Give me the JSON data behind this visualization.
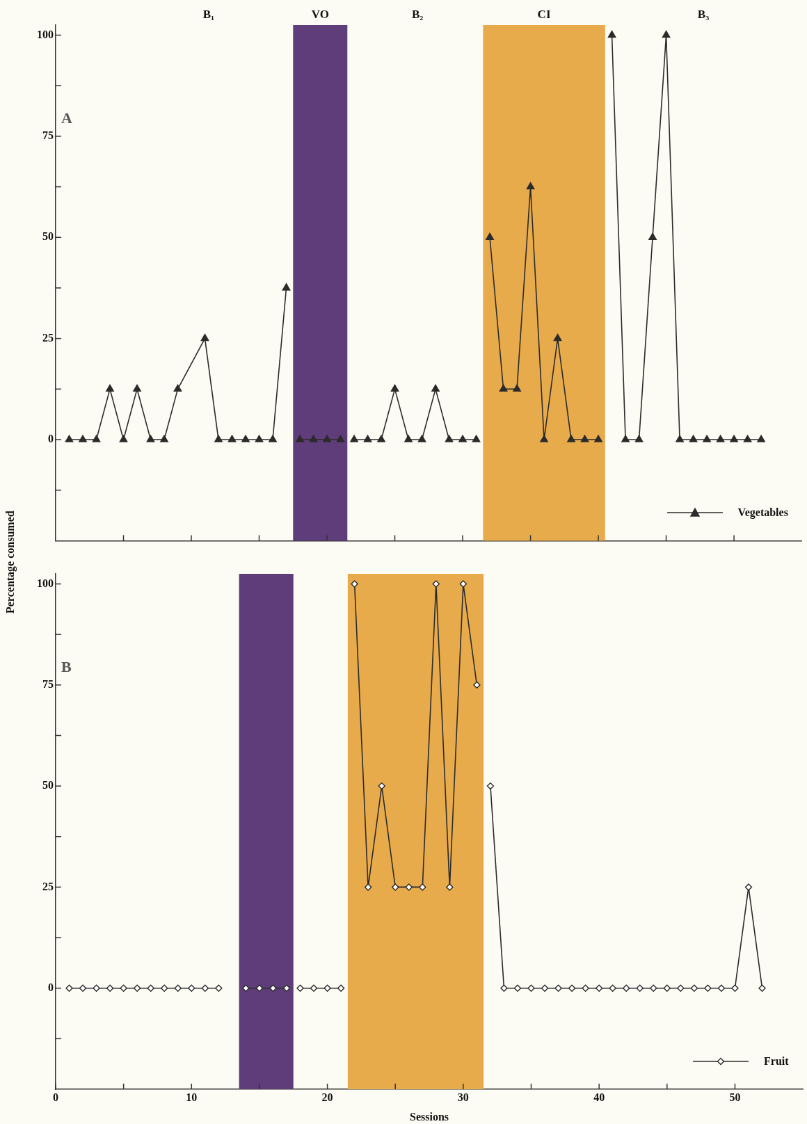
{
  "chart_data": [
    {
      "type": "line",
      "ylabel": "Percentage consumed",
      "annotations": [
        "A",
        "B₁",
        "B₂",
        "B₃"
      ],
      "series": [
        {
          "name": "Vegetables",
          "color": "#2b2b2b",
          "x": [
            1,
            2,
            3,
            4,
            5,
            6,
            7,
            8,
            9,
            11,
            12,
            13,
            14,
            15,
            16,
            17,
            17.5,
            18,
            19,
            20,
            21,
            21.5,
            22,
            23,
            24,
            25,
            26,
            27,
            28,
            29,
            30,
            31,
            31.5,
            32,
            33,
            34,
            35,
            36,
            37,
            38,
            39,
            40,
            40.5,
            41,
            42,
            43,
            44,
            45,
            46,
            47,
            48,
            49,
            50,
            51,
            52
          ],
          "values": [
            0,
            0,
            0,
            12.5,
            0,
            12.5,
            0,
            0,
            12.5,
            25,
            0,
            0,
            0,
            0,
            0,
            37.5,
            null,
            0,
            0,
            0,
            0,
            null,
            0,
            0,
            0,
            12.5,
            0,
            0,
            12.5,
            0,
            0,
            0,
            null,
            50,
            12.5,
            12.5,
            62.5,
            0,
            25,
            0,
            0,
            0,
            null,
            100,
            0,
            0,
            50,
            100,
            0,
            0,
            0,
            0,
            0,
            0,
            0
          ]
        }
      ],
      "xlim": [
        0,
        55
      ],
      "xticks": [
        5,
        10,
        15,
        20,
        25,
        30,
        35,
        40,
        45,
        50
      ],
      "ylim": [
        -25,
        102.5
      ],
      "yticks": [
        {
          "value": -12.5,
          "label": null
        },
        0,
        {
          "value": 12.5,
          "label": null
        },
        25,
        {
          "value": 37.5,
          "label": null
        },
        50,
        {
          "value": 62.5,
          "label": null
        },
        75,
        {
          "value": 87.5,
          "label": null
        },
        100
      ],
      "bands": [
        {
          "axis": "x",
          "from": 17.5,
          "to": 21.5,
          "label": "VO",
          "color": "#5f3d7a"
        },
        {
          "axis": "x",
          "from": 31.5,
          "to": 40.5,
          "label": "CI",
          "color": "#e8ab4c"
        }
      ],
      "tick_labels": "y",
      "grid": false,
      "legend": "bottom right",
      "marker": "triangle",
      "line_style": "solid"
    },
    {
      "type": "line",
      "xlabel": "Sessions",
      "annotations": [
        "B"
      ],
      "series": [
        {
          "name": "Fruit",
          "color": "#2b2b2b",
          "x": [
            1,
            2,
            3,
            4,
            5,
            6,
            7,
            8,
            9,
            10,
            11,
            12,
            13,
            14,
            15,
            16,
            17,
            17.5,
            18,
            19,
            20,
            21,
            21.5,
            22,
            23,
            24,
            25,
            26,
            27,
            28,
            29,
            30,
            31,
            31.5,
            32,
            33,
            34,
            35,
            36,
            37,
            38,
            39,
            40,
            41,
            42,
            43,
            44,
            45,
            46,
            47,
            48,
            49,
            50,
            51,
            52
          ],
          "values": [
            0,
            0,
            0,
            0,
            0,
            0,
            0,
            0,
            0,
            0,
            0,
            0,
            null,
            0,
            0,
            0,
            0,
            null,
            0,
            0,
            0,
            0,
            null,
            100,
            25,
            50,
            25,
            25,
            25,
            100,
            25,
            100,
            75,
            null,
            50,
            0,
            0,
            0,
            0,
            0,
            0,
            0,
            0,
            0,
            0,
            0,
            0,
            0,
            0,
            0,
            0,
            0,
            0,
            25,
            0
          ]
        }
      ],
      "xlim": [
        0,
        55
      ],
      "xticks": [
        0,
        {
          "value": 5,
          "label": null
        },
        10,
        {
          "value": 15,
          "label": null
        },
        20,
        {
          "value": 25,
          "label": null
        },
        30,
        {
          "value": 35,
          "label": null
        },
        40,
        {
          "value": 45,
          "label": null
        },
        50
      ],
      "ylim": [
        -25,
        102.5
      ],
      "yticks": [
        {
          "value": -12.5,
          "label": null
        },
        0,
        {
          "value": 12.5,
          "label": null
        },
        25,
        {
          "value": 37.5,
          "label": null
        },
        50,
        {
          "value": 62.5,
          "label": null
        },
        75,
        {
          "value": 87.5,
          "label": null
        },
        100
      ],
      "bands": [
        {
          "axis": "x",
          "from": 13.5,
          "to": 17.5,
          "color": "#5f3d7a"
        },
        {
          "axis": "x",
          "from": 21.5,
          "to": 31.5,
          "color": "#e8ab4c"
        }
      ],
      "grid": false,
      "legend": "bottom right",
      "marker": "diamond",
      "line_style": "solid"
    }
  ]
}
